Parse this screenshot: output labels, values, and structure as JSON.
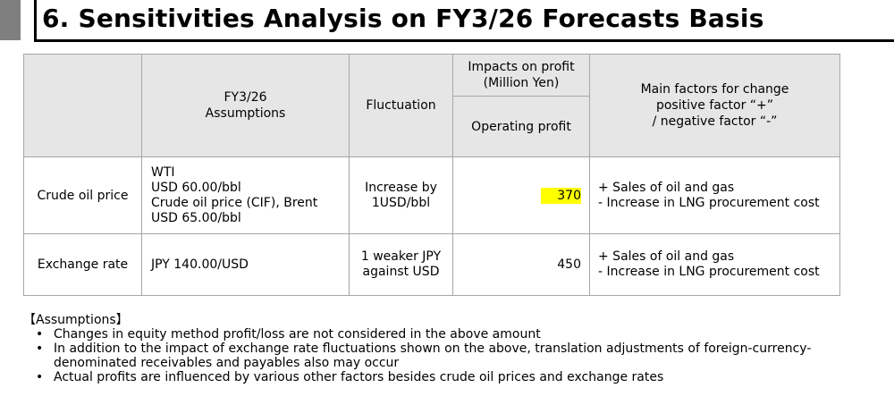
{
  "title": "6. Sensitivities Analysis on FY3/26 Forecasts Basis",
  "table": {
    "header": {
      "assumptions": [
        "FY3/26",
        "Assumptions"
      ],
      "fluctuation": "Fluctuation",
      "impacts": [
        "Impacts on profit",
        "(Million Yen)"
      ],
      "operating_profit": "Operating profit",
      "factors": [
        "Main factors for change",
        "positive factor “+”",
        "/ negative factor “-”"
      ]
    },
    "rows": [
      {
        "label": "Crude oil price",
        "assumptions": [
          "WTI",
          "USD 60.00/bbl",
          "Crude oil price (CIF), Brent",
          "USD 65.00/bbl"
        ],
        "fluctuation": [
          "Increase by",
          "1USD/bbl"
        ],
        "operating_profit": "370",
        "highlighted": true,
        "factors": [
          "+ Sales of oil and gas",
          "- Increase in LNG procurement cost"
        ]
      },
      {
        "label": "Exchange rate",
        "assumptions": [
          "JPY 140.00/USD"
        ],
        "fluctuation": [
          "1 weaker JPY",
          "against USD"
        ],
        "operating_profit": "450",
        "highlighted": false,
        "factors": [
          "+ Sales of oil and gas",
          "- Increase in LNG procurement cost"
        ]
      }
    ]
  },
  "notes": {
    "heading": "【Assumptions】",
    "bullet_char": "•",
    "items": [
      "Changes in equity method profit/loss are not considered in the above amount",
      "In addition to the impact of exchange rate fluctuations shown on the above, translation adjustments of foreign-currency-denominated receivables and payables also may occur",
      "Actual profits are influenced by various other factors besides crude oil prices and exchange rates"
    ]
  },
  "colors": {
    "header_bg": "#e6e6e6",
    "highlight": "#ffff00",
    "border": "#a6a6a6",
    "accent_bar": "#7f7f7f"
  }
}
